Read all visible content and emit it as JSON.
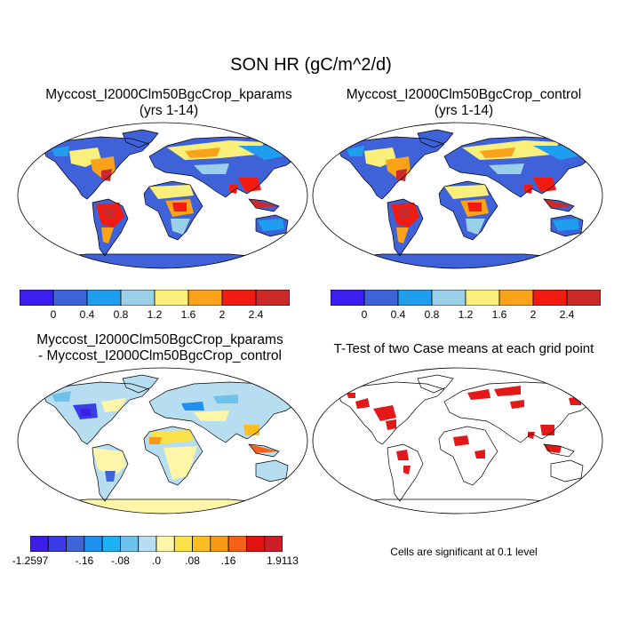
{
  "title": "SON HR (gC/m^2/d)",
  "panels": [
    {
      "title_line1": "Myccost_I2000Clm50BgcCrop_kparams",
      "title_line2": "(yrs 1-14)"
    },
    {
      "title_line1": "Myccost_I2000Clm50BgcCrop_control",
      "title_line2": "(yrs 1-14)"
    },
    {
      "title_line1": "Myccost_I2000Clm50BgcCrop_kparams",
      "title_line2": "- Myccost_I2000Clm50BgcCrop_control"
    },
    {
      "title_line1": "T-Test of two Case means at each grid point",
      "title_line2": ""
    }
  ],
  "significance_note": "Cells are significant at 0.1 level",
  "chart_data": [
    {
      "type": "heatmap",
      "title": "Myccost_I2000Clm50BgcCrop_kparams (yrs 1-14)",
      "projection": "Robinson",
      "colorbar": {
        "colors": [
          "#3a1ff0",
          "#3f62d9",
          "#1f9ef0",
          "#99cfe8",
          "#fbef7c",
          "#f9a21a",
          "#f21b12",
          "#cc2a2a"
        ],
        "tick_labels": [
          "0",
          "0.4",
          "0.8",
          "1.2",
          "1.6",
          "2",
          "2.4"
        ],
        "range": [
          -0.4,
          2.8
        ]
      }
    },
    {
      "type": "heatmap",
      "title": "Myccost_I2000Clm50BgcCrop_control (yrs 1-14)",
      "projection": "Robinson",
      "colorbar": {
        "colors": [
          "#3a1ff0",
          "#3f62d9",
          "#1f9ef0",
          "#99cfe8",
          "#fbef7c",
          "#f9a21a",
          "#f21b12",
          "#cc2a2a"
        ],
        "tick_labels": [
          "0",
          "0.4",
          "0.8",
          "1.2",
          "1.6",
          "2",
          "2.4"
        ],
        "range": [
          -0.4,
          2.8
        ]
      }
    },
    {
      "type": "heatmap",
      "title": "Myccost_I2000Clm50BgcCrop_kparams - Myccost_I2000Clm50BgcCrop_control",
      "projection": "Robinson",
      "colorbar": {
        "colors": [
          "#3b1fe6",
          "#3a3ce8",
          "#3f64d8",
          "#1f8ff0",
          "#1fb1f2",
          "#6ec3ec",
          "#b6def0",
          "#fdf6a9",
          "#fbe24b",
          "#fbbd1f",
          "#f99a17",
          "#f6611a",
          "#e01212",
          "#cc1f2a"
        ],
        "tick_labels": [
          "-1.2597",
          "-.16",
          "-.08",
          ".0",
          ".08",
          ".16",
          "1.9113"
        ],
        "min": -1.2597,
        "max": 1.9113
      }
    },
    {
      "type": "heatmap",
      "title": "T-Test of two Case means at each grid point",
      "projection": "Robinson",
      "significance_level": 0.1,
      "significant_color": "#e00000"
    }
  ]
}
